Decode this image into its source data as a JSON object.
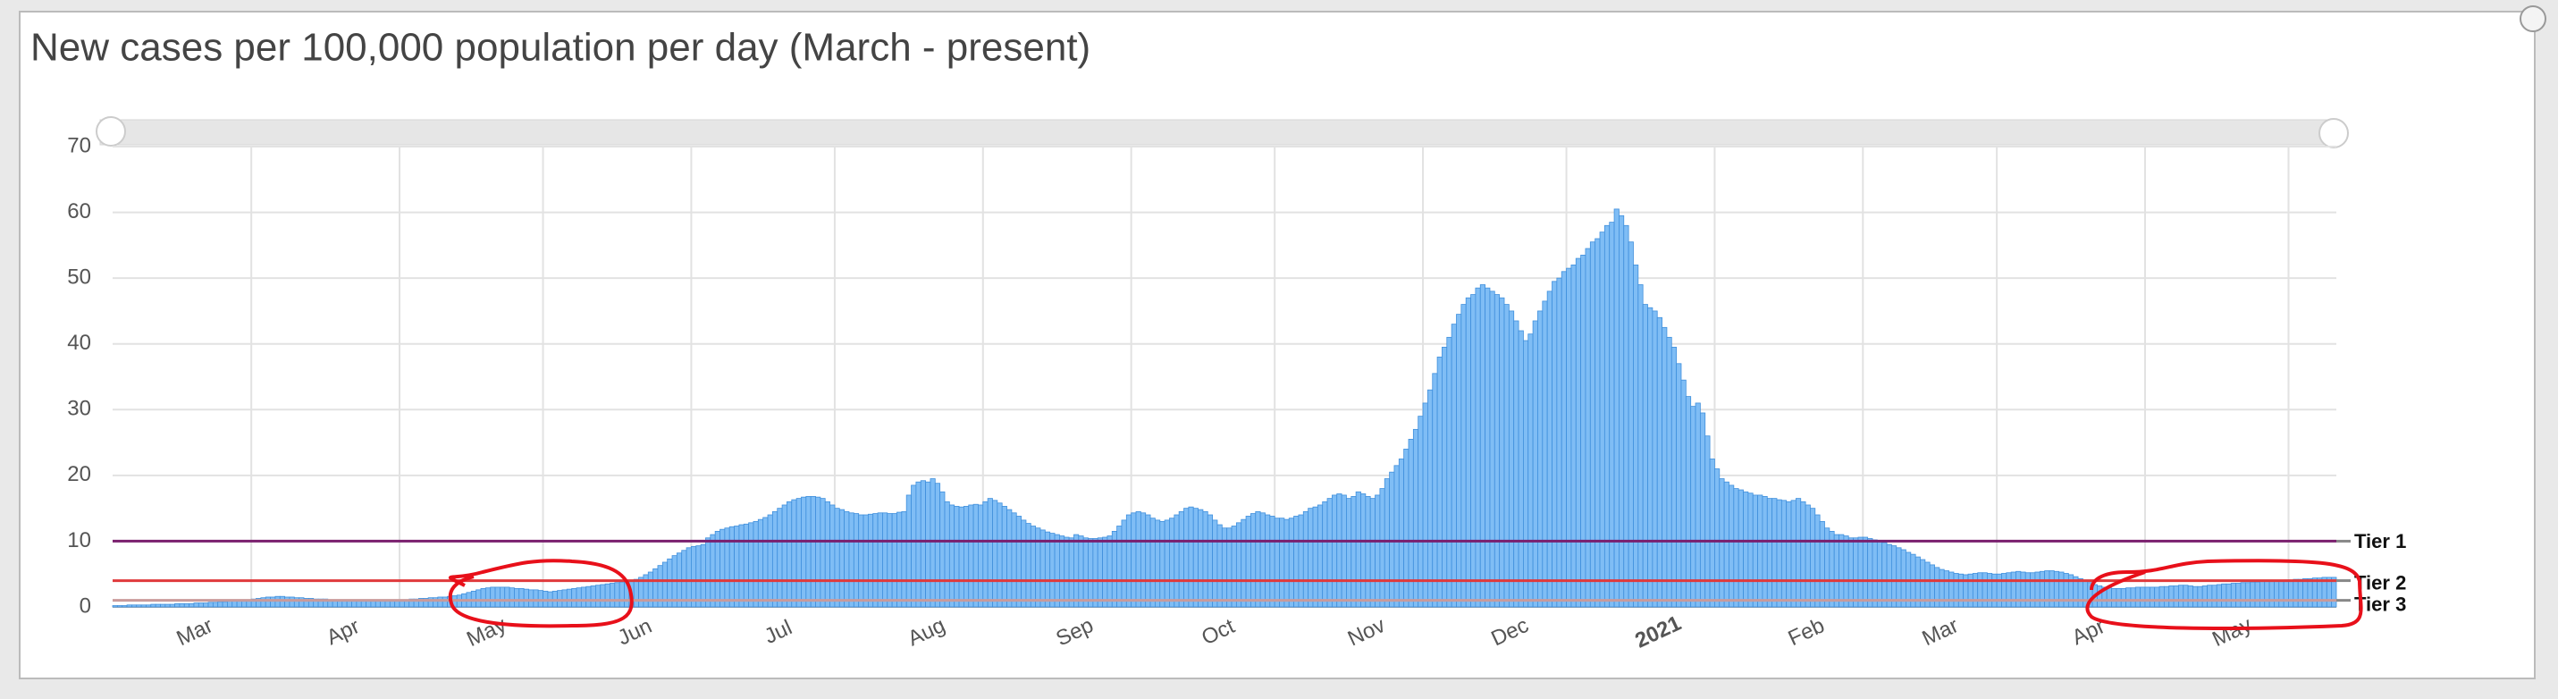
{
  "chart_data": {
    "type": "bar",
    "title": "New cases per 100,000 population per day (March - present)",
    "color": "#7fbdf5",
    "edge_color": "#3f8fdc",
    "grid": true,
    "ylim": [
      0,
      70
    ],
    "yticks": [
      0,
      10,
      20,
      30,
      40,
      50,
      60,
      70
    ],
    "xlim": [
      0,
      465
    ],
    "xticks": [
      {
        "value": 29,
        "label": "Mar"
      },
      {
        "value": 60,
        "label": "Apr"
      },
      {
        "value": 90,
        "label": "May"
      },
      {
        "value": 121,
        "label": "Jun"
      },
      {
        "value": 151,
        "label": "Jul"
      },
      {
        "value": 182,
        "label": "Aug"
      },
      {
        "value": 213,
        "label": "Sep"
      },
      {
        "value": 243,
        "label": "Oct"
      },
      {
        "value": 274,
        "label": "Nov"
      },
      {
        "value": 304,
        "label": "Dec"
      },
      {
        "value": 335,
        "label": "2021",
        "bold": true
      },
      {
        "value": 366,
        "label": "Feb"
      },
      {
        "value": 394,
        "label": "Mar"
      },
      {
        "value": 425,
        "label": "Apr"
      },
      {
        "value": 455,
        "label": "May"
      }
    ],
    "reference_lines": [
      {
        "label": "Tier 1",
        "value": 10,
        "color": "#7a1f6e"
      },
      {
        "label": "Tier 2",
        "value": 4,
        "color": "#e0393b"
      },
      {
        "label": "Tier 3",
        "value": 1,
        "color": "#c99a9a"
      }
    ],
    "values": [
      0.2,
      0.2,
      0.2,
      0.3,
      0.3,
      0.3,
      0.3,
      0.3,
      0.4,
      0.4,
      0.4,
      0.4,
      0.4,
      0.5,
      0.5,
      0.5,
      0.5,
      0.6,
      0.6,
      0.6,
      0.7,
      0.7,
      0.8,
      0.8,
      0.9,
      0.9,
      1,
      1,
      1.1,
      1.2,
      1.3,
      1.4,
      1.5,
      1.5,
      1.6,
      1.6,
      1.5,
      1.5,
      1.4,
      1.4,
      1.3,
      1.3,
      1.2,
      1.2,
      1.2,
      1.1,
      1.1,
      1.1,
      1.0,
      1.0,
      1.0,
      1.0,
      1.0,
      0.9,
      0.9,
      0.9,
      0.9,
      0.9,
      0.9,
      0.9,
      1.1,
      1.1,
      1.2,
      1.2,
      1.3,
      1.3,
      1.4,
      1.4,
      1.5,
      1.5,
      1.6,
      1.7,
      1.8,
      2.0,
      2.2,
      2.4,
      2.6,
      2.8,
      2.9,
      3.0,
      3.0,
      3.0,
      3.0,
      2.9,
      2.8,
      2.8,
      2.7,
      2.6,
      2.6,
      2.5,
      2.4,
      2.3,
      2.4,
      2.5,
      2.6,
      2.7,
      2.8,
      2.9,
      3.0,
      3.1,
      3.2,
      3.3,
      3.4,
      3.5,
      3.6,
      3.7,
      3.8,
      3.9,
      4.0,
      4.2,
      4.5,
      4.9,
      5.3,
      5.8,
      6.3,
      6.8,
      7.3,
      7.8,
      8.2,
      8.6,
      9.0,
      9.2,
      9.3,
      9.5,
      10.5,
      11,
      11.5,
      11.8,
      12,
      12.2,
      12.3,
      12.5,
      12.6,
      12.8,
      13,
      13.3,
      13.6,
      14,
      14.5,
      15,
      15.5,
      16,
      16.3,
      16.5,
      16.7,
      16.8,
      16.8,
      16.7,
      16.5,
      16,
      15.5,
      15,
      14.8,
      14.5,
      14.3,
      14.2,
      14,
      14,
      14.1,
      14.2,
      14.3,
      14.3,
      14.2,
      14.2,
      14.4,
      14.5,
      17,
      18.5,
      19,
      19.2,
      19,
      19.5,
      18.8,
      17.5,
      16,
      15.5,
      15.3,
      15.2,
      15.3,
      15.5,
      15.6,
      15.5,
      16,
      16.5,
      16.2,
      15.8,
      15.3,
      14.8,
      14.3,
      13.8,
      13.2,
      12.7,
      12.3,
      12,
      11.7,
      11.4,
      11.2,
      11,
      10.8,
      10.6,
      10.5,
      11,
      10.8,
      10.5,
      10.4,
      10.4,
      10.5,
      10.6,
      10.8,
      11.5,
      12.3,
      13.2,
      14,
      14.3,
      14.5,
      14.3,
      14,
      13.5,
      13.2,
      13,
      13.2,
      13.5,
      14,
      14.5,
      15,
      15.2,
      15,
      14.8,
      14.5,
      14,
      13.2,
      12.5,
      12,
      12,
      12.3,
      12.8,
      13.3,
      13.8,
      14.2,
      14.5,
      14.3,
      14,
      13.8,
      13.5,
      13.5,
      13.3,
      13.5,
      13.8,
      14,
      14.5,
      15,
      15.2,
      15.5,
      16,
      16.5,
      17,
      17.2,
      17,
      16.5,
      16.8,
      17.5,
      17.2,
      16.8,
      16.5,
      17,
      18,
      19.5,
      20.5,
      21.5,
      22.5,
      24,
      25.5,
      27,
      29,
      31,
      33,
      35.5,
      38,
      39.5,
      41,
      43,
      44.5,
      46,
      47,
      47.5,
      48.5,
      49,
      48.5,
      48,
      47.5,
      47,
      46,
      45,
      43.5,
      42,
      40.5,
      41.5,
      43.5,
      45,
      46.5,
      48,
      49.5,
      50,
      51,
      51.5,
      52,
      53,
      53.5,
      54.5,
      55.5,
      56,
      57,
      58,
      58.5,
      60.5,
      59.5,
      58,
      55.5,
      52,
      49,
      46,
      45.5,
      45,
      44,
      42.5,
      41,
      39.5,
      37,
      34.5,
      32,
      30.5,
      31,
      29.5,
      26,
      22.5,
      21,
      19.5,
      19,
      18.5,
      18,
      17.8,
      17.5,
      17.3,
      17,
      17,
      16.8,
      16.5,
      16.5,
      16.3,
      16.2,
      16,
      16.2,
      16.5,
      16,
      15.5,
      15,
      14,
      13,
      12,
      11.5,
      11,
      11,
      10.8,
      10.5,
      10.5,
      10.6,
      10.6,
      10.4,
      10.2,
      10,
      9.8,
      9.5,
      9.3,
      9,
      8.7,
      8.3,
      8,
      7.6,
      7.2,
      6.8,
      6.4,
      6,
      5.7,
      5.5,
      5.3,
      5.1,
      5,
      4.9,
      5,
      5.1,
      5.2,
      5.2,
      5.1,
      5,
      5,
      5.1,
      5.2,
      5.3,
      5.4,
      5.3,
      5.2,
      5.2,
      5.3,
      5.4,
      5.5,
      5.5,
      5.4,
      5.3,
      5.1,
      4.9,
      4.6,
      4.3,
      4,
      3.7,
      3.4,
      3.2,
      3,
      2.9,
      2.8,
      2.8,
      2.8,
      2.9,
      2.9,
      3,
      3,
      3,
      3,
      3,
      3.1,
      3.1,
      3.2,
      3.2,
      3.3,
      3.3,
      3.2,
      3.1,
      3.1,
      3.2,
      3.3,
      3.3,
      3.4,
      3.5,
      3.5,
      3.6,
      3.6,
      3.7,
      3.7,
      3.8,
      3.8,
      3.9,
      3.9,
      4,
      4,
      4,
      4.1,
      4.1,
      4.2,
      4.2,
      4.3,
      4.3,
      4.4,
      4.4,
      4.5,
      4.5,
      4.5
    ]
  }
}
